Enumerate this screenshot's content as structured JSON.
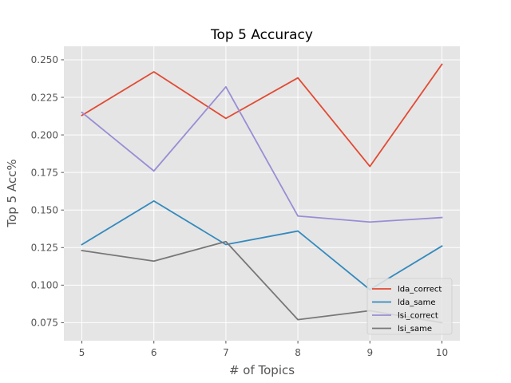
{
  "chart_data": {
    "type": "line",
    "title": "Top 5 Accuracy",
    "xlabel": "# of Topics",
    "ylabel": "Top 5 Acc%",
    "x": [
      5,
      6,
      7,
      8,
      9,
      10
    ],
    "xlim": [
      4.75,
      10.25
    ],
    "ylim": [
      0.063,
      0.259
    ],
    "yticks": [
      0.075,
      0.1,
      0.125,
      0.15,
      0.175,
      0.2,
      0.225,
      0.25
    ],
    "ytick_labels": [
      "0.075",
      "0.100",
      "0.125",
      "0.150",
      "0.175",
      "0.200",
      "0.225",
      "0.250"
    ],
    "xtick_labels": [
      "5",
      "6",
      "7",
      "8",
      "9",
      "10"
    ],
    "grid": true,
    "legend_position": "bottom-right",
    "series": [
      {
        "name": "lda_correct",
        "color": "#E24A33",
        "values": [
          0.213,
          0.242,
          0.211,
          0.238,
          0.179,
          0.247
        ]
      },
      {
        "name": "lda_same",
        "color": "#348ABD",
        "values": [
          0.127,
          0.156,
          0.127,
          0.136,
          0.097,
          0.126
        ]
      },
      {
        "name": "lsi_correct",
        "color": "#988ED5",
        "values": [
          0.215,
          0.176,
          0.232,
          0.146,
          0.142,
          0.145
        ]
      },
      {
        "name": "lsi_same",
        "color": "#777777",
        "values": [
          0.123,
          0.116,
          0.129,
          0.077,
          0.083,
          0.075
        ]
      }
    ]
  }
}
